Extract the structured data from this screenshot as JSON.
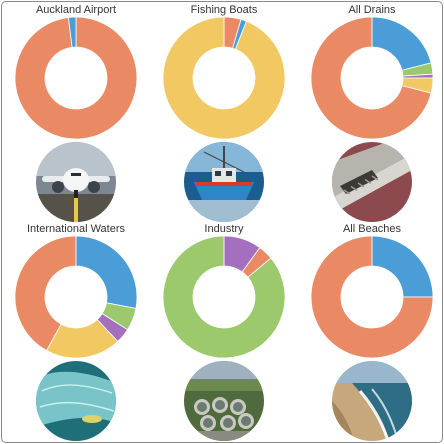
{
  "colors": {
    "orange": "#E98A65",
    "yellow": "#F1C862",
    "blue": "#4A9DD6",
    "green": "#9BC96B",
    "purple": "#A36FBE"
  },
  "chart_data": [
    {
      "type": "pie",
      "donut": true,
      "title": "Auckland Airport",
      "slices": [
        {
          "value": 98.0,
          "color": "#E98A65"
        },
        {
          "value": 2.0,
          "color": "#4A9DD6"
        }
      ],
      "photo_icon": "airplane-icon"
    },
    {
      "type": "pie",
      "donut": true,
      "title": "Fishing Boats",
      "slices": [
        {
          "value": 4.5,
          "color": "#E98A65"
        },
        {
          "value": 1.5,
          "color": "#4A9DD6"
        },
        {
          "value": 94.0,
          "color": "#F1C862"
        }
      ],
      "photo_icon": "fishing-boat-icon"
    },
    {
      "type": "pie",
      "donut": true,
      "title": "All Drains",
      "slices": [
        {
          "value": 21.0,
          "color": "#4A9DD6"
        },
        {
          "value": 3.0,
          "color": "#9BC96B"
        },
        {
          "value": 1.0,
          "color": "#A36FBE"
        },
        {
          "value": 4.0,
          "color": "#F1C862"
        },
        {
          "value": 71.0,
          "color": "#E98A65"
        }
      ],
      "photo_icon": "storm-drain-icon"
    },
    {
      "type": "pie",
      "donut": true,
      "title": "International Waters",
      "slices": [
        {
          "value": 28.0,
          "color": "#4A9DD6"
        },
        {
          "value": 6.0,
          "color": "#9BC96B"
        },
        {
          "value": 4.0,
          "color": "#A36FBE"
        },
        {
          "value": 20.0,
          "color": "#F1C862"
        },
        {
          "value": 42.0,
          "color": "#E98A65"
        }
      ],
      "photo_icon": "fishing-net-icon"
    },
    {
      "type": "pie",
      "donut": true,
      "title": "Industry",
      "slices": [
        {
          "value": 10.0,
          "color": "#A36FBE"
        },
        {
          "value": 4.0,
          "color": "#E98A65"
        },
        {
          "value": 86.0,
          "color": "#9BC96B"
        }
      ],
      "photo_icon": "treatment-plant-icon"
    },
    {
      "type": "pie",
      "donut": true,
      "title": "All Beaches",
      "slices": [
        {
          "value": 25.0,
          "color": "#4A9DD6"
        },
        {
          "value": 75.0,
          "color": "#E98A65"
        }
      ],
      "photo_icon": "beach-icon"
    }
  ]
}
